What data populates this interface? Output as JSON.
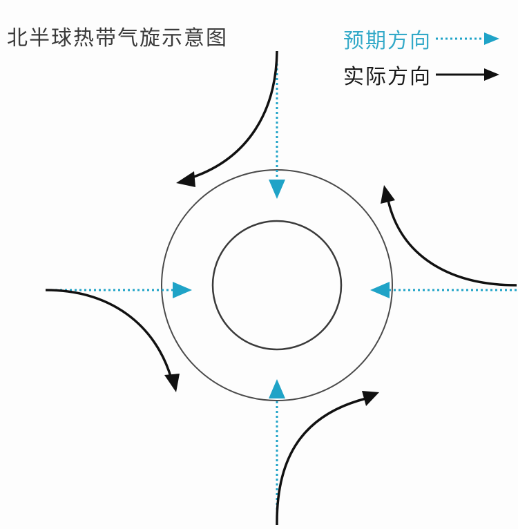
{
  "title": "北半球热带气旋示意图",
  "legend": {
    "expected": {
      "label": "预期方向",
      "color": "#1fa3c7",
      "style": "dotted-arrow"
    },
    "actual": {
      "label": "实际方向",
      "color": "#111111",
      "style": "solid-arrow"
    }
  },
  "diagram": {
    "rings": [
      "outer-ring",
      "inner-ring"
    ],
    "expected_arrows": [
      "from-north",
      "from-west",
      "from-east",
      "from-south"
    ],
    "actual_arrows": [
      "north-curve-left",
      "west-curve-down",
      "east-curve-up",
      "south-curve-right"
    ]
  }
}
